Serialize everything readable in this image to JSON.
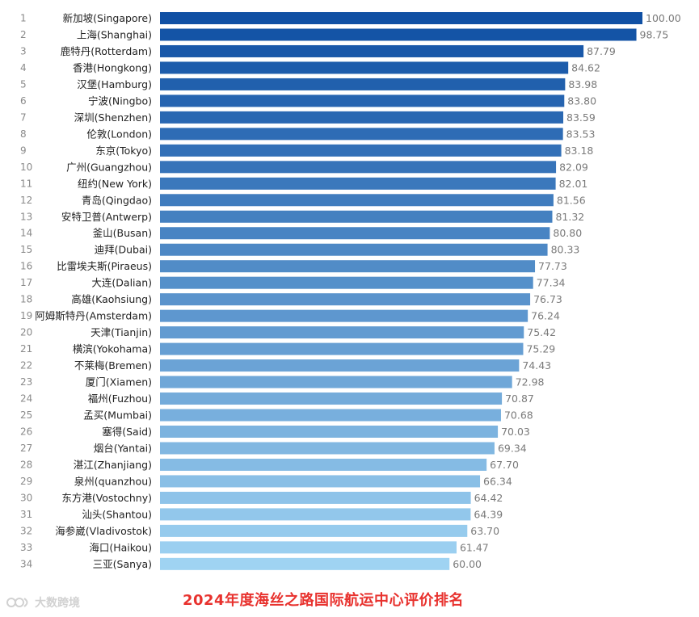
{
  "chart_data": {
    "type": "bar",
    "orientation": "horizontal",
    "title": "2024年度海丝之路国际航运中心评价排名",
    "ranks": [
      "1",
      "2",
      "3",
      "4",
      "5",
      "6",
      "7",
      "8",
      "9",
      "10",
      "11",
      "12",
      "13",
      "14",
      "15",
      "16",
      "17",
      "18",
      "19",
      "20",
      "21",
      "22",
      "23",
      "24",
      "25",
      "26",
      "27",
      "28",
      "29",
      "30",
      "31",
      "32",
      "33",
      "34"
    ],
    "categories": [
      "新加坡(Singapore)",
      "上海(Shanghai)",
      "鹿特丹(Rotterdam)",
      "香港(Hongkong)",
      "汉堡(Hamburg)",
      "宁波(Ningbo)",
      "深圳(Shenzhen)",
      "伦敦(London)",
      "东京(Tokyo)",
      "广州(Guangzhou)",
      "纽约(New York)",
      "青岛(Qingdao)",
      "安特卫普(Antwerp)",
      "釜山(Busan)",
      "迪拜(Dubai)",
      "比雷埃夫斯(Piraeus)",
      "大连(Dalian)",
      "高雄(Kaohsiung)",
      "阿姆斯特丹(Amsterdam)",
      "天津(Tianjin)",
      "横滨(Yokohama)",
      "不莱梅(Bremen)",
      "厦门(Xiamen)",
      "福州(Fuzhou)",
      "孟买(Mumbai)",
      "塞得(Said)",
      "烟台(Yantai)",
      "湛江(Zhanjiang)",
      "泉州(quanzhou)",
      "东方港(Vostochny)",
      "汕头(Shantou)",
      "海参崴(Vladivostok)",
      "海口(Haikou)",
      "三亚(Sanya)"
    ],
    "values": [
      100.0,
      98.75,
      87.79,
      84.62,
      83.98,
      83.8,
      83.59,
      83.53,
      83.18,
      82.09,
      82.01,
      81.56,
      81.32,
      80.8,
      80.33,
      77.73,
      77.34,
      76.73,
      76.24,
      75.42,
      75.29,
      74.43,
      72.98,
      70.87,
      70.68,
      70.03,
      69.34,
      67.7,
      66.34,
      64.42,
      64.39,
      63.7,
      61.47,
      60.0
    ],
    "value_labels": [
      "100.00",
      "98.75",
      "87.79",
      "84.62",
      "83.98",
      "83.80",
      "83.59",
      "83.53",
      "83.18",
      "82.09",
      "82.01",
      "81.56",
      "81.32",
      "80.80",
      "80.33",
      "77.73",
      "77.34",
      "76.73",
      "76.24",
      "75.42",
      "75.29",
      "74.43",
      "72.98",
      "70.87",
      "70.68",
      "70.03",
      "69.34",
      "67.70",
      "66.34",
      "64.42",
      "64.39",
      "63.70",
      "61.47",
      "60.00"
    ],
    "xlim": [
      0,
      100
    ],
    "grid": false,
    "legend": "none",
    "colors": {
      "start": "#1050a4",
      "end": "#9fd3f2"
    }
  },
  "watermark": {
    "text": "大数跨境"
  }
}
